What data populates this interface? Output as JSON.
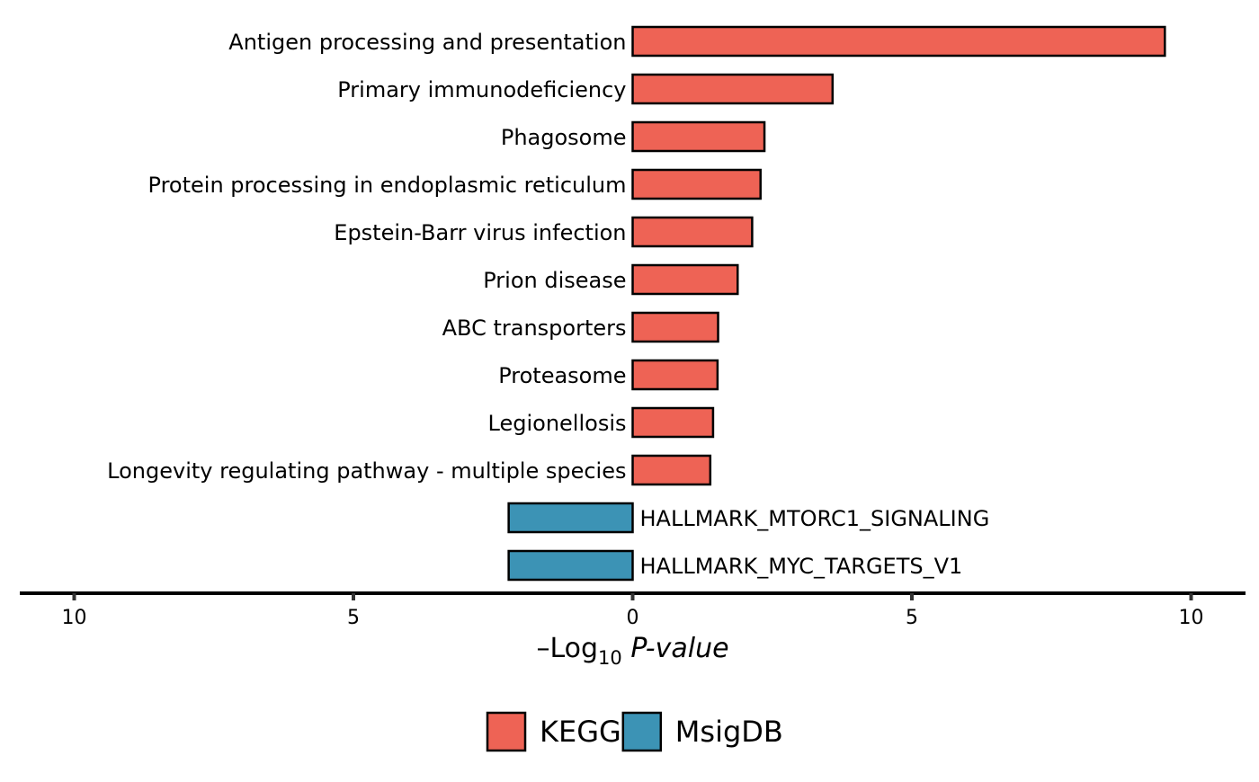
{
  "chart_data": {
    "type": "bar",
    "orientation": "horizontal",
    "categories": [
      "Antigen processing and presentation",
      "Primary immunodeficiency",
      "Phagosome",
      "Protein processing in endoplasmic reticulum",
      "Epstein-Barr virus infection",
      "Prion disease",
      "ABC transporters",
      "Proteasome",
      "Legionellosis",
      "Longevity regulating pathway - multiple species",
      "HALLMARK_MTORC1_SIGNALING",
      "HALLMARK_MYC_TARGETS_V1"
    ],
    "values": [
      9.53,
      3.58,
      2.36,
      2.29,
      2.14,
      1.88,
      1.53,
      1.52,
      1.44,
      1.39,
      -2.22,
      -2.22
    ],
    "groups": [
      "KEGG",
      "KEGG",
      "KEGG",
      "KEGG",
      "KEGG",
      "KEGG",
      "KEGG",
      "KEGG",
      "KEGG",
      "KEGG",
      "MsigDB",
      "MsigDB"
    ],
    "xlim": [
      -10.9,
      11.0
    ],
    "xticks": [
      -10,
      -5,
      0,
      5,
      10
    ],
    "xtick_labels": [
      "10",
      "5",
      "0",
      "5",
      "10"
    ],
    "xlabel": {
      "prefix": "–Log",
      "subscript": "10",
      "italic": " P-value"
    },
    "ylabel": "",
    "title": "",
    "legend": {
      "position": "bottom",
      "entries": [
        {
          "name": "KEGG",
          "color": "#EE6355"
        },
        {
          "name": "MsigDB",
          "color": "#3C93B5"
        }
      ]
    },
    "grid": false
  }
}
